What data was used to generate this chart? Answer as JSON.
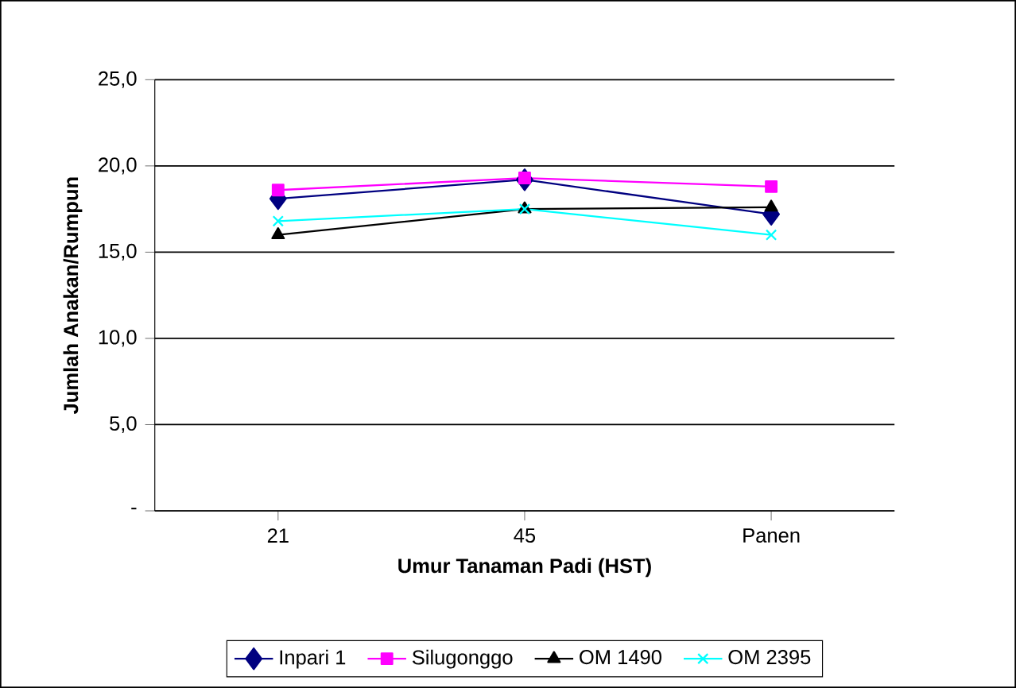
{
  "chart_data": {
    "type": "line",
    "xlabel": "Umur Tanaman Padi (HST)",
    "ylabel": "Jumlah Anakan/Rumpun",
    "categories": [
      "21",
      "45",
      "Panen"
    ],
    "series": [
      {
        "name": "Inpari 1",
        "color": "#000080",
        "marker": "diamond",
        "values": [
          18.1,
          19.2,
          17.2
        ]
      },
      {
        "name": "Silugonggo",
        "color": "#ff00ff",
        "marker": "square",
        "values": [
          18.6,
          19.3,
          18.8
        ]
      },
      {
        "name": "OM 1490",
        "color": "#000000",
        "marker": "triangle",
        "values": [
          16.0,
          17.5,
          17.6
        ]
      },
      {
        "name": "OM 2395",
        "color": "#00ffff",
        "marker": "cross",
        "values": [
          16.8,
          17.5,
          16.0
        ]
      }
    ],
    "ylim": [
      0,
      25
    ],
    "yticks": [
      {
        "value": 0,
        "label": "-"
      },
      {
        "value": 5,
        "label": "5,0"
      },
      {
        "value": 10,
        "label": "10,0"
      },
      {
        "value": 15,
        "label": "15,0"
      },
      {
        "value": 20,
        "label": "20,0"
      },
      {
        "value": 25,
        "label": "25,0"
      }
    ],
    "grid": "y",
    "legend": "bottom"
  }
}
